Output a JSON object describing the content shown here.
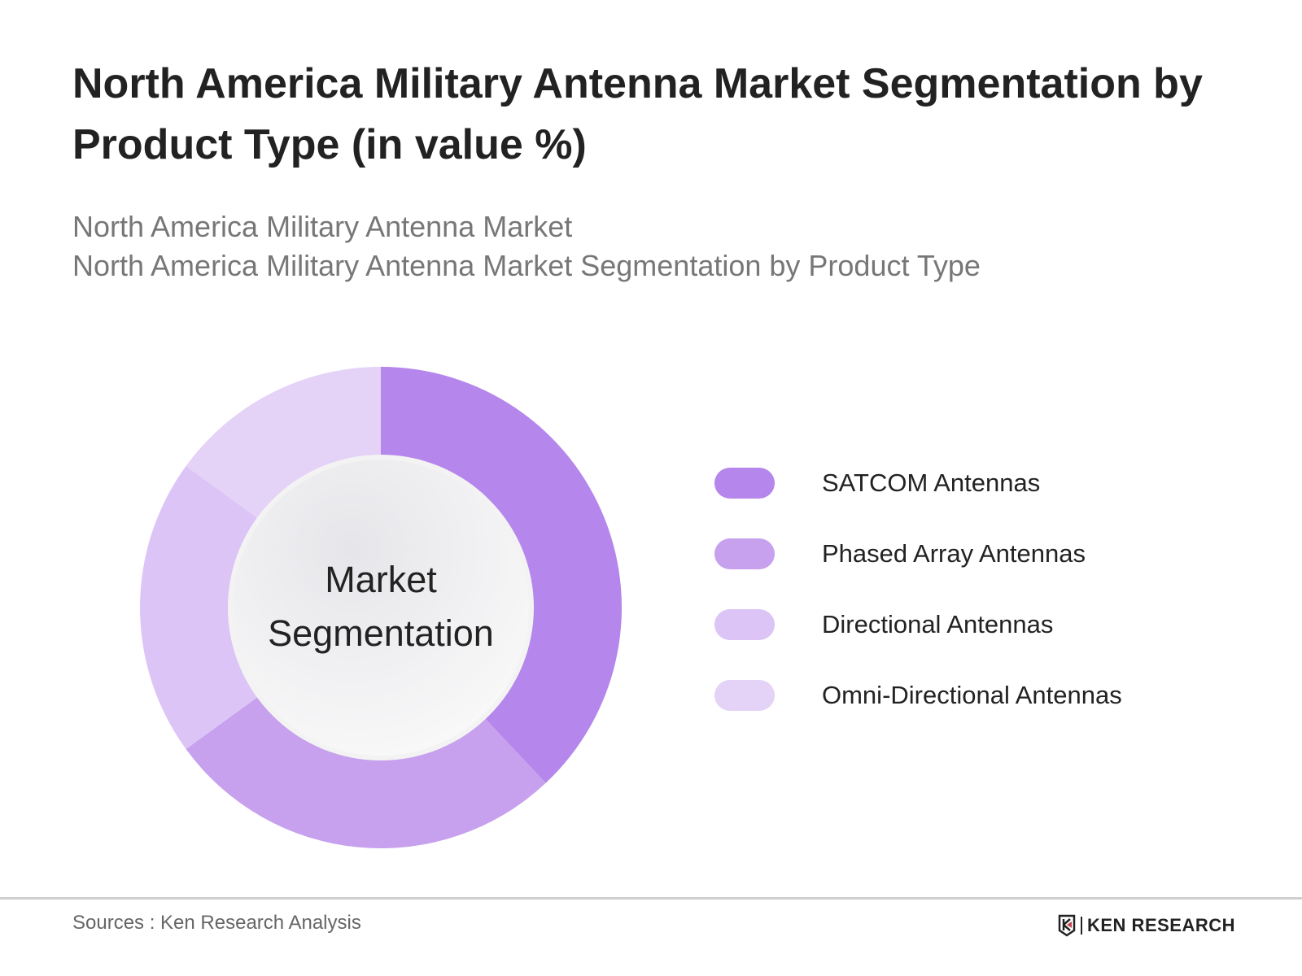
{
  "header": {
    "title": "North America Military Antenna Market Segmentation by Product Type (in value %)",
    "subtitle_1": "North America Military Antenna Market",
    "subtitle_2": "North America Military Antenna Market Segmentation by Product Type"
  },
  "chart_data": {
    "type": "pie",
    "variant": "donut",
    "center_label": "Market Segmentation",
    "categories": [
      "SATCOM Antennas",
      "Phased Array Antennas",
      "Directional Antennas",
      "Omni-Directional Antennas"
    ],
    "values": [
      38,
      27,
      20,
      15
    ],
    "unit": "%",
    "colors": [
      "#b586eb",
      "#c7a0ee",
      "#dcc5f6",
      "#e4d2f7"
    ],
    "legend_position": "right"
  },
  "footer": {
    "source": "Sources : Ken Research Analysis",
    "logo_text": "KEN RESEARCH"
  }
}
